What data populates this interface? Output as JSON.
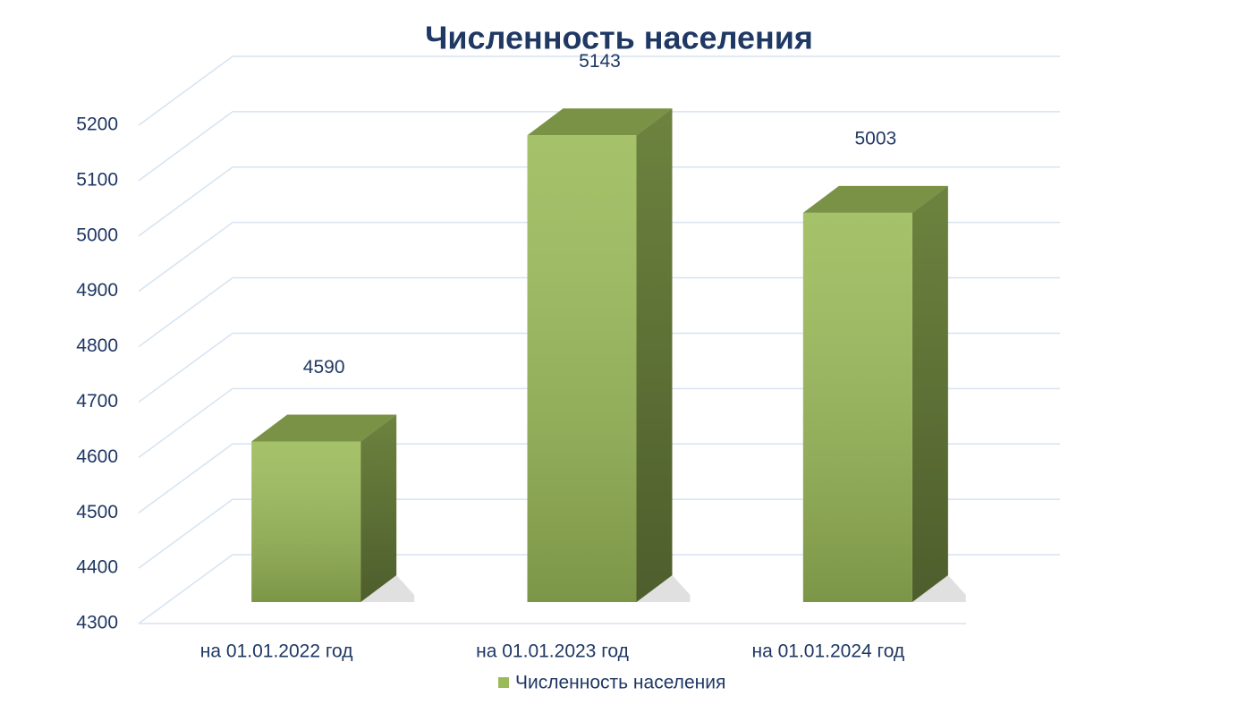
{
  "chart_data": {
    "type": "bar",
    "title": "Численность населения",
    "categories": [
      "на 01.01.2022 год",
      "на 01.01.2023 год",
      "на 01.01.2024 год"
    ],
    "series": [
      {
        "name": "Численность населения",
        "color": "#9bbb59",
        "values": [
          4590,
          5143,
          5003
        ]
      }
    ],
    "ylim": [
      4300,
      5200
    ],
    "yticks": [
      4300,
      4400,
      4500,
      4600,
      4700,
      4800,
      4900,
      5000,
      5100,
      5200
    ],
    "grid": true,
    "legend": "bottom"
  }
}
